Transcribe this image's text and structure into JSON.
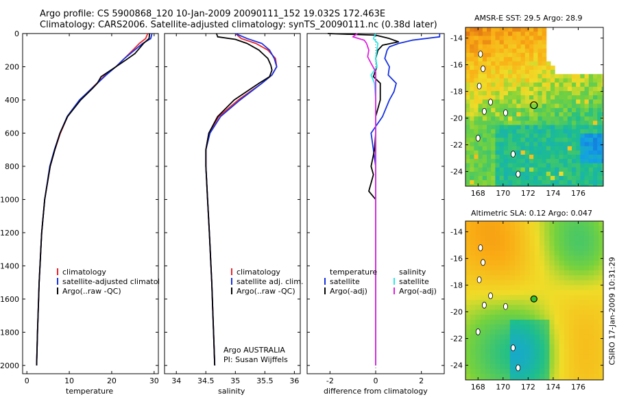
{
  "header": {
    "line1": "Argo profile: CS 5900868_120 10-Jan-2009 20090111_152 19.032S 172.463E",
    "line2": "Climatology: CARS2006. Satellite-adjusted climatology: synTS_20090111.nc (0.38d later)"
  },
  "colors": {
    "climatology": "#e8222a",
    "satellite": "#1530e0",
    "argo": "#000000",
    "argo_adj_sal": "#e020e0",
    "sat_sal": "#2ae8e8"
  },
  "panels": {
    "temperature": {
      "xlabel": "temperature",
      "legend": [
        "climatology",
        "satellite-adjusted climatology",
        "Argo(..raw -QC)"
      ]
    },
    "salinity": {
      "xlabel": "salinity",
      "legend": [
        "climatology",
        "satellite adj. clim.",
        "Argo(..raw -QC)"
      ],
      "credit1": "Argo AUSTRALIA",
      "credit2": "PI: Susan Wijffels"
    },
    "difference": {
      "xlabel": "difference from climatology",
      "legend_t_title": "temperature",
      "legend_t": [
        "satellite",
        "Argo(-adj)"
      ],
      "legend_s_title": "salinity",
      "legend_s": [
        "satellite",
        "Argo(-adj)"
      ]
    }
  },
  "maps": {
    "sst_title": "AMSR-E SST: 29.5 Argo: 28.9",
    "sla_title": "Altimetric SLA: 0.12 Argo: 0.047",
    "lon_ticks": [
      "168",
      "170",
      "172",
      "174",
      "176"
    ],
    "lat_ticks": [
      "-14",
      "-16",
      "-18",
      "-20",
      "-22",
      "-24"
    ],
    "float_lon": 172.463,
    "float_lat": -19.032,
    "stamp": "CSIRO 17-Jan-2009 10:31:29"
  },
  "chart_data": [
    {
      "type": "line",
      "name": "temperature",
      "xlim": [
        -1,
        31
      ],
      "ylim": [
        2050,
        0
      ],
      "xticks": [
        0,
        10,
        20,
        30
      ],
      "yticks": [
        0,
        200,
        400,
        600,
        800,
        1000,
        1200,
        1400,
        1600,
        1800,
        2000
      ],
      "xlabel": "temperature",
      "series": [
        {
          "name": "climatology",
          "depth": [
            0,
            30,
            60,
            100,
            150,
            200,
            250,
            300,
            400,
            500,
            600,
            700,
            800,
            1000,
            1200,
            1500,
            1800,
            2000
          ],
          "values": [
            28.5,
            28.0,
            26.5,
            25.0,
            23.0,
            21.0,
            18.5,
            16.5,
            12.5,
            9.6,
            7.9,
            6.6,
            5.5,
            4.2,
            3.5,
            2.9,
            2.5,
            2.3
          ]
        },
        {
          "name": "satellite-adjusted climatology",
          "depth": [
            0,
            30,
            60,
            100,
            150,
            200,
            250,
            300,
            400,
            500,
            600,
            700,
            800,
            1000,
            1200,
            1500,
            1800,
            2000
          ],
          "values": [
            29.5,
            29.2,
            27.3,
            25.4,
            23.0,
            21.0,
            18.7,
            16.6,
            12.4,
            9.5,
            7.8,
            6.5,
            5.4,
            4.2,
            3.5,
            2.9,
            2.5,
            2.3
          ]
        },
        {
          "name": "Argo(..raw -QC)",
          "depth": [
            0,
            10,
            30,
            60,
            90,
            120,
            160,
            200,
            260,
            300,
            330,
            400,
            500,
            600,
            700,
            800,
            1000,
            1200,
            1500,
            1800,
            2000
          ],
          "values": [
            28.9,
            28.9,
            28.8,
            27.5,
            26.5,
            25.5,
            23.3,
            21.0,
            17.5,
            16.6,
            15.5,
            12.7,
            9.6,
            7.8,
            6.6,
            5.5,
            4.2,
            3.5,
            2.9,
            2.5,
            2.3
          ]
        }
      ]
    },
    {
      "type": "line",
      "name": "salinity",
      "xlim": [
        33.8,
        36.1
      ],
      "ylim": [
        2050,
        0
      ],
      "xticks": [
        34,
        34.5,
        35,
        35.5,
        36
      ],
      "yticks": [
        0,
        200,
        400,
        600,
        800,
        1000,
        1200,
        1400,
        1600,
        1800,
        2000
      ],
      "xlabel": "salinity",
      "series": [
        {
          "name": "climatology",
          "depth": [
            0,
            30,
            60,
            100,
            150,
            200,
            250,
            300,
            400,
            500,
            600,
            700,
            800,
            1000,
            1200,
            1500,
            1800,
            2000
          ],
          "values": [
            35.0,
            35.1,
            35.35,
            35.55,
            35.68,
            35.7,
            35.62,
            35.45,
            35.05,
            34.72,
            34.55,
            34.5,
            34.5,
            34.53,
            34.56,
            34.6,
            34.63,
            34.65
          ]
        },
        {
          "name": "satellite adj. clim.",
          "depth": [
            0,
            30,
            60,
            100,
            150,
            200,
            250,
            300,
            400,
            500,
            600,
            700,
            800,
            1000,
            1200,
            1500,
            1800,
            2000
          ],
          "values": [
            35.0,
            35.2,
            35.45,
            35.58,
            35.66,
            35.7,
            35.62,
            35.45,
            35.08,
            34.75,
            34.57,
            34.5,
            34.5,
            34.53,
            34.56,
            34.6,
            34.63,
            34.65
          ]
        },
        {
          "name": "Argo(..raw -QC)",
          "depth": [
            0,
            20,
            35,
            60,
            100,
            150,
            190,
            220,
            260,
            300,
            400,
            500,
            600,
            700,
            800,
            1000,
            1200,
            1500,
            1800,
            2000
          ],
          "values": [
            34.68,
            34.7,
            35.0,
            35.2,
            35.4,
            35.55,
            35.6,
            35.62,
            35.58,
            35.4,
            34.98,
            34.7,
            34.55,
            34.5,
            34.5,
            34.53,
            34.56,
            34.6,
            34.63,
            34.65
          ]
        }
      ]
    },
    {
      "type": "line",
      "name": "difference",
      "xlim": [
        -3,
        3
      ],
      "ylim": [
        2050,
        0
      ],
      "xticks": [
        -2,
        0,
        2
      ],
      "yticks": [
        0,
        200,
        400,
        600,
        800,
        1000,
        1200,
        1400,
        1600,
        1800,
        2000
      ],
      "xlabel": "difference from climatology",
      "series": [
        {
          "name": "temperature satellite",
          "depth": [
            0,
            20,
            40,
            60,
            80,
            100,
            150,
            200,
            250,
            300,
            350,
            400,
            500,
            600,
            700,
            800,
            1000,
            1500,
            2000
          ],
          "values": [
            2.8,
            2.8,
            1.6,
            1.0,
            0.6,
            0.5,
            0.4,
            0.6,
            0.55,
            0.9,
            0.8,
            0.6,
            0.3,
            -0.2,
            -0.1,
            0.0,
            0.0,
            0.0,
            0.0
          ]
        },
        {
          "name": "temperature Argo(-adj)",
          "depth": [
            0,
            10,
            30,
            50,
            70,
            100,
            150,
            200,
            260,
            300,
            400,
            500,
            600,
            700,
            800,
            850,
            950,
            1000,
            1200,
            1500,
            2000
          ],
          "values": [
            -2.1,
            0.0,
            0.6,
            1.0,
            0.3,
            0.1,
            0.0,
            0.05,
            -0.1,
            0.2,
            0.2,
            0.0,
            0.0,
            -0.05,
            -0.2,
            -0.1,
            -0.3,
            0.0,
            0.0,
            0.0,
            0.0
          ]
        },
        {
          "name": "salinity satellite",
          "depth": [
            0,
            30,
            60,
            100,
            150,
            200,
            250,
            300,
            400,
            500,
            700,
            1000,
            1500,
            2000
          ],
          "values": [
            0.0,
            -0.1,
            0.1,
            0.05,
            0.0,
            0.05,
            -0.2,
            -0.05,
            0.0,
            0.0,
            0.0,
            0.0,
            0.0,
            0.0
          ]
        },
        {
          "name": "salinity Argo(-adj)",
          "depth": [
            0,
            20,
            40,
            60,
            100,
            140,
            180,
            230,
            300,
            400,
            500,
            700,
            1000,
            1500,
            2000
          ],
          "values": [
            -0.8,
            -1.0,
            -0.5,
            -0.4,
            -0.3,
            -0.35,
            -0.2,
            0.0,
            0.0,
            0.0,
            0.0,
            0.0,
            0.0,
            0.0,
            0.0
          ]
        }
      ]
    }
  ]
}
